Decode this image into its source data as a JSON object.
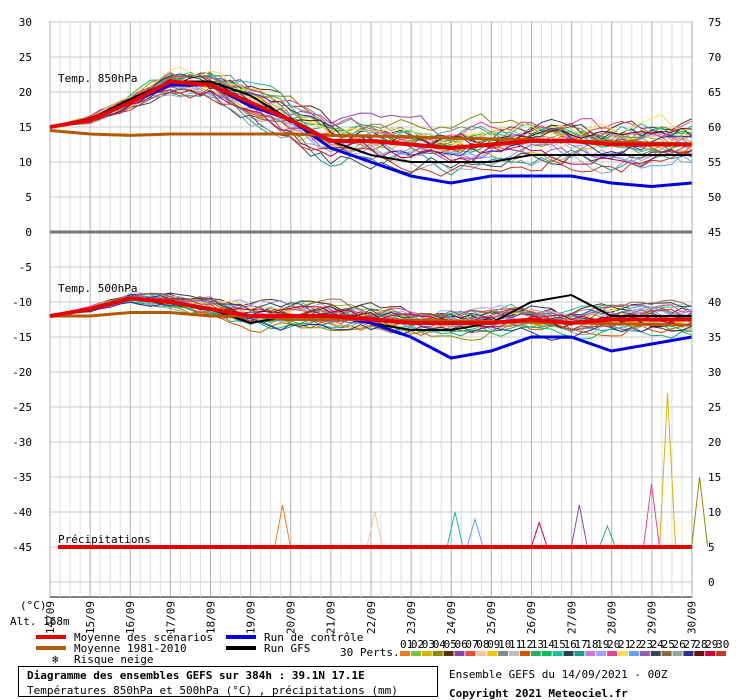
{
  "chart_data": {
    "type": "line",
    "x_labels": [
      "14/09",
      "15/09",
      "16/09",
      "17/09",
      "18/09",
      "19/09",
      "20/09",
      "21/09",
      "22/09",
      "23/09",
      "24/09",
      "25/09",
      "26/09",
      "27/09",
      "28/09",
      "29/09",
      "30/09"
    ],
    "left_ticks": [
      "30",
      "25",
      "20",
      "15",
      "10",
      "5",
      "0",
      "-5",
      "-10",
      "-15",
      "-20",
      "-25",
      "-30",
      "-35",
      "-40",
      "-45"
    ],
    "right_ticks_top": [
      "75",
      "70",
      "65",
      "60",
      "55",
      "50",
      "45"
    ],
    "right_ticks_bottom": [
      "40",
      "35",
      "30",
      "25",
      "20",
      "15",
      "10",
      "5",
      "0"
    ],
    "units_label": "(°C)",
    "altitude_label": "Alt. 168m",
    "panel_labels": {
      "t850": "Temp. 850hPa",
      "t500": "Temp. 500hPa",
      "precip": "Précipitations"
    },
    "legend": [
      {
        "label": "Moyenne des scénarios",
        "color": "#e80000"
      },
      {
        "label": "Moyenne 1981-2010",
        "color": "#b35a00"
      },
      {
        "label": "Risque neige",
        "color": "#1e90ff"
      },
      {
        "label": "Run de contrôle",
        "color": "#0000e0"
      },
      {
        "label": "Run GFS",
        "color": "#000000"
      }
    ],
    "perts_label": "30 Perts.",
    "pert_numbers": [
      "01",
      "02",
      "03",
      "04",
      "05",
      "06",
      "07",
      "08",
      "09",
      "10",
      "11",
      "12",
      "13",
      "14",
      "15",
      "16",
      "17",
      "18",
      "19",
      "20",
      "21",
      "22",
      "23",
      "24",
      "25",
      "26",
      "27",
      "28",
      "29",
      "30"
    ],
    "pert_colors": [
      "#e67e22",
      "#7fbf3f",
      "#d4b400",
      "#8b8b00",
      "#5a2e0a",
      "#8e44ad",
      "#e74c3c",
      "#f3c6a0",
      "#f1c40f",
      "#7f8c8d",
      "#bdbdbd",
      "#d35400",
      "#27ae60",
      "#00c060",
      "#1abc9c",
      "#2c3e50",
      "#16a085",
      "#c678dd",
      "#a0a0ff",
      "#e84393",
      "#f5e050",
      "#66a0ff",
      "#9b59b6",
      "#34495e",
      "#8e6b3a",
      "#95a5a6",
      "#2d2d8c",
      "#6b0f0f",
      "#cc0033",
      "#c0392b"
    ],
    "t850_mean": [
      15,
      16,
      18.5,
      21.5,
      21,
      18.5,
      16,
      13,
      13,
      12.5,
      12,
      12.5,
      13,
      13,
      12.5,
      12.5,
      12.5
    ],
    "t850_clim": [
      14.5,
      14,
      13.8,
      14,
      14,
      14,
      14,
      13.8,
      13.7,
      13.6,
      13.4,
      13.3,
      13.2,
      13,
      12.9,
      12.7,
      12.6
    ],
    "t850_control": [
      15,
      16,
      18.5,
      21,
      21,
      18,
      16,
      12,
      10,
      8,
      7,
      8,
      8,
      8,
      7,
      6.5,
      7
    ],
    "t850_gfs": [
      15,
      16,
      19,
      21.5,
      21.5,
      19.5,
      16,
      13,
      11,
      10,
      10,
      10,
      11,
      11,
      11,
      11,
      11
    ],
    "t500_mean": [
      -12,
      -11,
      -9.5,
      -10,
      -11,
      -12,
      -12,
      -12,
      -12.5,
      -13,
      -13,
      -13,
      -12.5,
      -13,
      -12.5,
      -12.5,
      -12.5
    ],
    "t500_clim": [
      -12,
      -12,
      -11.5,
      -11.5,
      -12,
      -12,
      -12.5,
      -12.5,
      -12.5,
      -12.6,
      -12.7,
      -12.8,
      -12.9,
      -13,
      -13.1,
      -13.2,
      -13.3
    ],
    "t500_control": [
      -12,
      -11,
      -9.5,
      -10,
      -11,
      -12,
      -12,
      -12,
      -13,
      -15,
      -18,
      -17,
      -15,
      -15,
      -17,
      -16,
      -15
    ],
    "t500_gfs": [
      -12,
      -11,
      -9.5,
      -10,
      -11,
      -13,
      -12,
      -12,
      -13,
      -14,
      -14,
      -13,
      -10,
      -9,
      -12,
      -12,
      -12
    ],
    "precip_peak_mm": 22,
    "precip_spikes": [
      {
        "day": 5.8,
        "mm": 6
      },
      {
        "day": 8.1,
        "mm": 5
      },
      {
        "day": 10.1,
        "mm": 5
      },
      {
        "day": 10.6,
        "mm": 4
      },
      {
        "day": 12.2,
        "mm": 3.5
      },
      {
        "day": 13.2,
        "mm": 6
      },
      {
        "day": 13.9,
        "mm": 3
      },
      {
        "day": 15.0,
        "mm": 9
      },
      {
        "day": 15.4,
        "mm": 22
      },
      {
        "day": 16.2,
        "mm": 10
      }
    ],
    "ylim_left": [
      -45,
      30
    ],
    "grid": true
  },
  "footer": {
    "title_line": "Diagramme des ensembles GEFS sur 384h : 39.1N 17.1E",
    "subtitle_line": "Températures 850hPa et 500hPa (°C) , précipitations (mm)",
    "run_info": "Ensemble GEFS du 14/09/2021 - 00Z",
    "copyright": "Copyright 2021 Meteociel.fr"
  }
}
